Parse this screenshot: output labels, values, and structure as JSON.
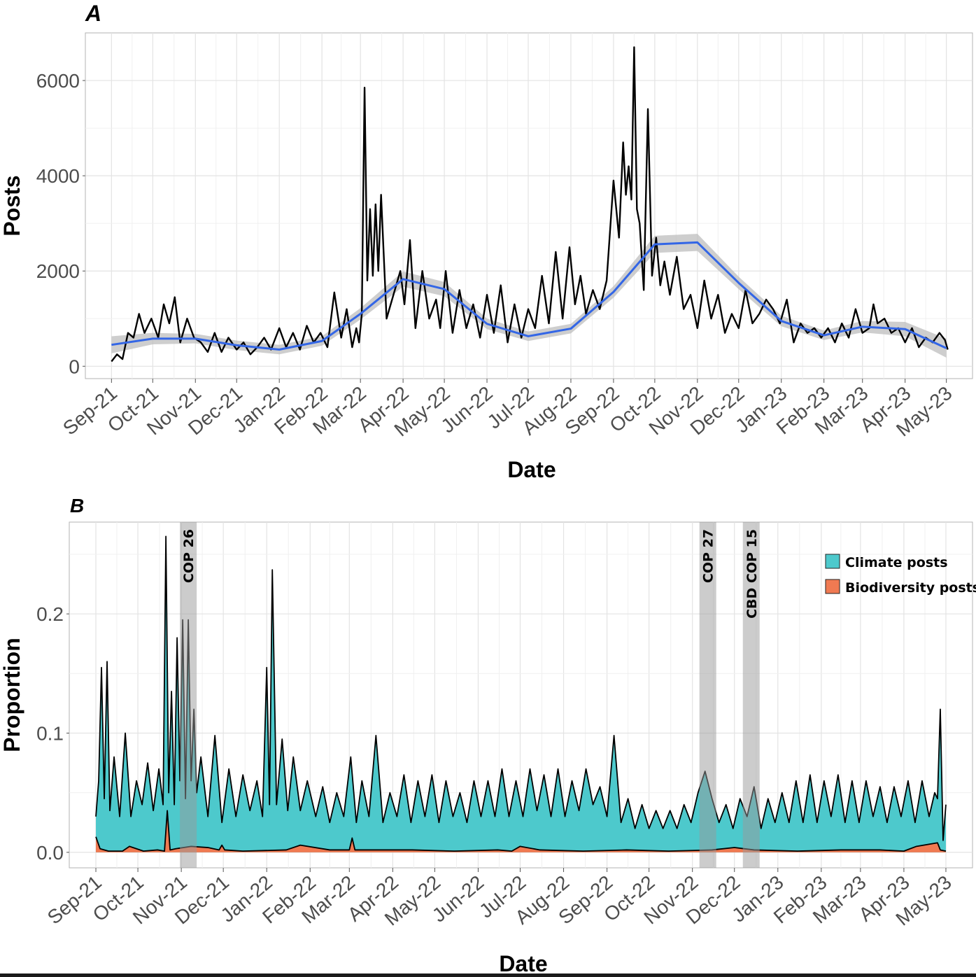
{
  "chart_data": [
    {
      "panel": "A",
      "type": "line",
      "xlabel": "Date",
      "ylabel": "Posts",
      "x_tick_labels": [
        "Sep-21",
        "Oct-21",
        "Nov-21",
        "Dec-21",
        "Jan-22",
        "Feb-22",
        "Mar-22",
        "Apr-22",
        "May-22",
        "Jun-22",
        "Jul-22",
        "Aug-22",
        "Sep-22",
        "Oct-22",
        "Nov-22",
        "Dec-22",
        "Jan-23",
        "Feb-23",
        "Mar-23",
        "Apr-23",
        "May-23"
      ],
      "y_ticks": [
        0,
        2000,
        4000,
        6000
      ],
      "y_tick_labels": [
        "0",
        "2000",
        "4000",
        "6000"
      ],
      "ylim": [
        -260,
        7000
      ],
      "xlim": [
        "2021-08-13",
        "2023-05-20"
      ],
      "grid": true,
      "series": [
        {
          "color": "#000000",
          "x": [
            "2021-09-01",
            "2021-09-05",
            "2021-09-09",
            "2021-09-13",
            "2021-09-17",
            "2021-09-21",
            "2021-09-25",
            "2021-09-30",
            "2021-10-05",
            "2021-10-09",
            "2021-10-13",
            "2021-10-17",
            "2021-10-21",
            "2021-10-26",
            "2021-10-31",
            "2021-11-05",
            "2021-11-10",
            "2021-11-15",
            "2021-11-20",
            "2021-11-25",
            "2021-12-01",
            "2021-12-06",
            "2021-12-11",
            "2021-12-16",
            "2021-12-21",
            "2021-12-26",
            "2022-01-01",
            "2022-01-06",
            "2022-01-11",
            "2022-01-16",
            "2022-01-21",
            "2022-01-26",
            "2022-01-31",
            "2022-02-05",
            "2022-02-10",
            "2022-02-15",
            "2022-02-19",
            "2022-02-23",
            "2022-02-26",
            "2022-02-28",
            "2022-03-02",
            "2022-03-04",
            "2022-03-06",
            "2022-03-08",
            "2022-03-10",
            "2022-03-12",
            "2022-03-14",
            "2022-03-16",
            "2022-03-20",
            "2022-03-25",
            "2022-03-30",
            "2022-04-02",
            "2022-04-06",
            "2022-04-10",
            "2022-04-15",
            "2022-04-20",
            "2022-04-25",
            "2022-04-28",
            "2022-05-02",
            "2022-05-07",
            "2022-05-12",
            "2022-05-17",
            "2022-05-22",
            "2022-05-27",
            "2022-06-01",
            "2022-06-06",
            "2022-06-11",
            "2022-06-16",
            "2022-06-21",
            "2022-06-26",
            "2022-07-01",
            "2022-07-06",
            "2022-07-11",
            "2022-07-16",
            "2022-07-21",
            "2022-07-26",
            "2022-07-31",
            "2022-08-04",
            "2022-08-08",
            "2022-08-12",
            "2022-08-17",
            "2022-08-22",
            "2022-08-27",
            "2022-09-01",
            "2022-09-05",
            "2022-09-08",
            "2022-09-10",
            "2022-09-12",
            "2022-09-14",
            "2022-09-16",
            "2022-09-18",
            "2022-09-20",
            "2022-09-23",
            "2022-09-26",
            "2022-09-29",
            "2022-10-02",
            "2022-10-05",
            "2022-10-08",
            "2022-10-12",
            "2022-10-17",
            "2022-10-22",
            "2022-10-27",
            "2022-11-01",
            "2022-11-06",
            "2022-11-11",
            "2022-11-16",
            "2022-11-21",
            "2022-11-26",
            "2022-12-01",
            "2022-12-06",
            "2022-12-11",
            "2022-12-16",
            "2022-12-21",
            "2022-12-26",
            "2022-12-31",
            "2023-01-05",
            "2023-01-10",
            "2023-01-15",
            "2023-01-20",
            "2023-01-25",
            "2023-01-30",
            "2023-02-04",
            "2023-02-09",
            "2023-02-14",
            "2023-02-19",
            "2023-02-24",
            "2023-03-01",
            "2023-03-06",
            "2023-03-09",
            "2023-03-12",
            "2023-03-17",
            "2023-03-22",
            "2023-03-27",
            "2023-04-01",
            "2023-04-06",
            "2023-04-11",
            "2023-04-16",
            "2023-04-21",
            "2023-04-26",
            "2023-04-30",
            "2023-05-02"
          ],
          "y": [
            100,
            250,
            150,
            700,
            600,
            1100,
            700,
            1000,
            600,
            1300,
            900,
            1450,
            500,
            1000,
            600,
            500,
            300,
            700,
            300,
            600,
            350,
            500,
            250,
            400,
            600,
            350,
            800,
            400,
            700,
            350,
            850,
            500,
            700,
            400,
            1550,
            600,
            1200,
            400,
            800,
            500,
            1100,
            5850,
            1800,
            3300,
            1900,
            3400,
            2000,
            3600,
            1000,
            1500,
            2000,
            1300,
            2650,
            800,
            2000,
            1000,
            1400,
            800,
            2000,
            700,
            1600,
            800,
            1300,
            600,
            1500,
            700,
            1700,
            500,
            1300,
            600,
            1200,
            800,
            1900,
            900,
            2400,
            1000,
            2500,
            1300,
            1900,
            1100,
            1600,
            1200,
            1800,
            3900,
            2700,
            4700,
            3600,
            4200,
            3500,
            6700,
            3300,
            3000,
            1600,
            5400,
            1900,
            2700,
            1700,
            2200,
            1500,
            2300,
            1200,
            1500,
            800,
            1800,
            1000,
            1500,
            700,
            1100,
            800,
            1600,
            900,
            1100,
            1400,
            1200,
            900,
            1400,
            500,
            900,
            700,
            800,
            600,
            800,
            500,
            900,
            600,
            1200,
            700,
            800,
            1300,
            900,
            1000,
            700,
            800,
            500,
            800,
            400,
            600,
            500,
            700,
            550,
            350
          ],
          "label": ""
        },
        {
          "color": "#3366e6",
          "x": [
            "2021-09-01",
            "2021-10-01",
            "2021-11-01",
            "2021-12-01",
            "2022-01-01",
            "2022-02-01",
            "2022-03-01",
            "2022-04-01",
            "2022-05-01",
            "2022-06-01",
            "2022-07-01",
            "2022-08-01",
            "2022-09-01",
            "2022-10-01",
            "2022-11-01",
            "2022-12-01",
            "2023-01-01",
            "2023-02-01",
            "2023-03-01",
            "2023-04-01",
            "2023-05-01"
          ],
          "y": [
            450,
            580,
            580,
            440,
            350,
            530,
            1100,
            1830,
            1620,
            890,
            630,
            790,
            1560,
            2560,
            2600,
            1750,
            950,
            650,
            830,
            780,
            380
          ],
          "label": ""
        }
      ],
      "confidence_band": {
        "color": "#bdbdbd",
        "half_width": [
          180,
          120,
          100,
          100,
          100,
          100,
          120,
          160,
          150,
          110,
          100,
          100,
          120,
          180,
          180,
          130,
          110,
          100,
          120,
          150,
          200
        ]
      }
    },
    {
      "panel": "B",
      "type": "area",
      "xlabel": "Date",
      "ylabel": "Proportion",
      "x_tick_labels": [
        "Sep-21",
        "Oct-21",
        "Nov-21",
        "Dec-21",
        "Jan-22",
        "Feb-22",
        "Mar-22",
        "Apr-22",
        "May-22",
        "Jun-22",
        "Jul-22",
        "Aug-22",
        "Sep-22",
        "Oct-22",
        "Nov-22",
        "Dec-22",
        "Jan-23",
        "Feb-23",
        "Mar-23",
        "Apr-23",
        "May-23"
      ],
      "y_ticks": [
        0,
        0.1,
        0.2
      ],
      "y_tick_labels": [
        "0.0",
        "0.1",
        "0.2"
      ],
      "ylim": [
        -0.013,
        0.277
      ],
      "xlim": [
        "2021-08-13",
        "2023-05-20"
      ],
      "grid": true,
      "legend_position": "top-right",
      "events": [
        {
          "label": "COP 26",
          "start": "2021-10-31",
          "end": "2021-11-12"
        },
        {
          "label": "COP 27",
          "start": "2022-11-06",
          "end": "2022-11-18"
        },
        {
          "label": "CBD COP 15",
          "start": "2022-12-07",
          "end": "2022-12-19"
        }
      ],
      "series": [
        {
          "name": "Climate posts",
          "color": "#4dc9cc",
          "x": [
            "2021-09-01",
            "2021-09-03",
            "2021-09-05",
            "2021-09-07",
            "2021-09-09",
            "2021-09-11",
            "2021-09-14",
            "2021-09-18",
            "2021-09-22",
            "2021-09-26",
            "2021-09-30",
            "2021-10-04",
            "2021-10-08",
            "2021-10-12",
            "2021-10-16",
            "2021-10-19",
            "2021-10-21",
            "2021-10-23",
            "2021-10-25",
            "2021-10-27",
            "2021-10-29",
            "2021-10-31",
            "2021-11-02",
            "2021-11-04",
            "2021-11-06",
            "2021-11-08",
            "2021-11-10",
            "2021-11-12",
            "2021-11-15",
            "2021-11-20",
            "2021-11-25",
            "2021-11-30",
            "2021-12-05",
            "2021-12-10",
            "2021-12-15",
            "2021-12-20",
            "2021-12-25",
            "2021-12-29",
            "2022-01-01",
            "2022-01-03",
            "2022-01-05",
            "2022-01-08",
            "2022-01-12",
            "2022-01-16",
            "2022-01-20",
            "2022-01-25",
            "2022-01-30",
            "2022-02-05",
            "2022-02-10",
            "2022-02-15",
            "2022-02-20",
            "2022-02-25",
            "2022-03-02",
            "2022-03-06",
            "2022-03-10",
            "2022-03-15",
            "2022-03-20",
            "2022-03-25",
            "2022-03-30",
            "2022-04-04",
            "2022-04-09",
            "2022-04-14",
            "2022-04-19",
            "2022-04-24",
            "2022-04-29",
            "2022-05-04",
            "2022-05-09",
            "2022-05-14",
            "2022-05-19",
            "2022-05-24",
            "2022-05-29",
            "2022-06-03",
            "2022-06-08",
            "2022-06-13",
            "2022-06-18",
            "2022-06-23",
            "2022-06-28",
            "2022-07-03",
            "2022-07-08",
            "2022-07-13",
            "2022-07-18",
            "2022-07-23",
            "2022-07-28",
            "2022-08-02",
            "2022-08-07",
            "2022-08-12",
            "2022-08-17",
            "2022-08-22",
            "2022-08-27",
            "2022-09-01",
            "2022-09-06",
            "2022-09-11",
            "2022-09-16",
            "2022-09-21",
            "2022-09-26",
            "2022-10-01",
            "2022-10-06",
            "2022-10-11",
            "2022-10-16",
            "2022-10-21",
            "2022-10-26",
            "2022-10-31",
            "2022-11-05",
            "2022-11-10",
            "2022-11-15",
            "2022-11-20",
            "2022-11-25",
            "2022-11-30",
            "2022-12-05",
            "2022-12-10",
            "2022-12-15",
            "2022-12-20",
            "2022-12-25",
            "2022-12-30",
            "2023-01-04",
            "2023-01-09",
            "2023-01-14",
            "2023-01-19",
            "2023-01-24",
            "2023-01-29",
            "2023-02-03",
            "2023-02-08",
            "2023-02-13",
            "2023-02-18",
            "2023-02-23",
            "2023-02-28",
            "2023-03-05",
            "2023-03-10",
            "2023-03-15",
            "2023-03-20",
            "2023-03-25",
            "2023-03-30",
            "2023-04-04",
            "2023-04-09",
            "2023-04-14",
            "2023-04-19",
            "2023-04-23",
            "2023-04-25",
            "2023-04-27",
            "2023-04-29",
            "2023-05-01"
          ],
          "values": [
            0.03,
            0.06,
            0.155,
            0.045,
            0.16,
            0.035,
            0.08,
            0.03,
            0.1,
            0.03,
            0.06,
            0.04,
            0.075,
            0.035,
            0.07,
            0.04,
            0.265,
            0.05,
            0.135,
            0.04,
            0.18,
            0.06,
            0.195,
            0.045,
            0.195,
            0.06,
            0.12,
            0.05,
            0.08,
            0.03,
            0.098,
            0.025,
            0.07,
            0.03,
            0.065,
            0.035,
            0.06,
            0.03,
            0.155,
            0.04,
            0.237,
            0.04,
            0.095,
            0.035,
            0.08,
            0.035,
            0.06,
            0.03,
            0.055,
            0.025,
            0.05,
            0.03,
            0.08,
            0.025,
            0.06,
            0.03,
            0.098,
            0.025,
            0.05,
            0.03,
            0.065,
            0.025,
            0.06,
            0.03,
            0.065,
            0.025,
            0.06,
            0.03,
            0.05,
            0.025,
            0.06,
            0.03,
            0.06,
            0.03,
            0.07,
            0.03,
            0.06,
            0.03,
            0.07,
            0.035,
            0.065,
            0.03,
            0.07,
            0.03,
            0.06,
            0.035,
            0.07,
            0.04,
            0.055,
            0.03,
            0.098,
            0.025,
            0.045,
            0.02,
            0.04,
            0.02,
            0.035,
            0.02,
            0.035,
            0.02,
            0.04,
            0.025,
            0.05,
            0.068,
            0.045,
            0.025,
            0.04,
            0.02,
            0.045,
            0.03,
            0.055,
            0.02,
            0.045,
            0.025,
            0.05,
            0.025,
            0.06,
            0.025,
            0.065,
            0.025,
            0.06,
            0.03,
            0.065,
            0.025,
            0.06,
            0.025,
            0.06,
            0.03,
            0.055,
            0.025,
            0.055,
            0.03,
            0.06,
            0.025,
            0.06,
            0.03,
            0.05,
            0.045,
            0.12,
            0.01,
            0.04
          ],
          "label": "Climate posts"
        },
        {
          "name": "Biodiversity posts",
          "color": "#f07a52",
          "x": [
            "2021-09-01",
            "2021-09-04",
            "2021-09-10",
            "2021-09-20",
            "2021-09-25",
            "2021-10-05",
            "2021-10-15",
            "2021-10-20",
            "2021-10-22",
            "2021-10-24",
            "2021-10-28",
            "2021-11-08",
            "2021-11-20",
            "2021-11-28",
            "2021-11-30",
            "2021-12-02",
            "2021-12-15",
            "2022-01-15",
            "2022-01-25",
            "2022-02-15",
            "2022-03-01",
            "2022-03-03",
            "2022-03-05",
            "2022-04-15",
            "2022-05-15",
            "2022-06-15",
            "2022-06-25",
            "2022-07-01",
            "2022-07-15",
            "2022-08-15",
            "2022-09-15",
            "2022-10-15",
            "2022-11-15",
            "2022-12-01",
            "2022-12-15",
            "2023-01-15",
            "2023-02-15",
            "2023-03-15",
            "2023-04-01",
            "2023-04-10",
            "2023-04-25",
            "2023-04-27",
            "2023-05-01"
          ],
          "values": [
            0.013,
            0.003,
            0.001,
            0.001,
            0.005,
            0.001,
            0.002,
            0.001,
            0.035,
            0.002,
            0.003,
            0.005,
            0.004,
            0.002,
            0.006,
            0.002,
            0.001,
            0.002,
            0.006,
            0.002,
            0.002,
            0.012,
            0.002,
            0.002,
            0.001,
            0.002,
            0.001,
            0.005,
            0.002,
            0.001,
            0.002,
            0.001,
            0.002,
            0.004,
            0.002,
            0.001,
            0.002,
            0.002,
            0.001,
            0.005,
            0.008,
            0.002,
            0.001
          ],
          "label": "Biodiversity posts"
        }
      ]
    }
  ],
  "panels": {
    "a_letter": "A",
    "b_letter": "B"
  }
}
